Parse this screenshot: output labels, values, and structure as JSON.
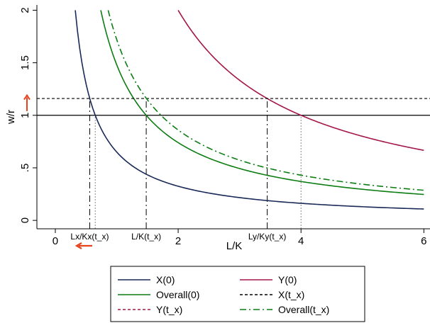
{
  "chart_data": {
    "type": "line",
    "title": "",
    "xlabel": "L/K",
    "ylabel": "w/r",
    "xlim": [
      -0.3,
      6.1
    ],
    "ylim": [
      -0.08,
      2.05
    ],
    "x_ticks": [
      {
        "value": 0,
        "label": "0"
      },
      {
        "value": 2,
        "label": "2"
      },
      {
        "value": 4,
        "label": "4"
      },
      {
        "value": 6,
        "label": "6"
      }
    ],
    "y_ticks": [
      {
        "value": 0,
        "label": "0"
      },
      {
        "value": 0.5,
        "label": ".5"
      },
      {
        "value": 1,
        "label": "1"
      },
      {
        "value": 1.5,
        "label": "1.5"
      },
      {
        "value": 2,
        "label": "2"
      }
    ],
    "grid": false,
    "legend_position": "bottom",
    "series": [
      {
        "name": "X(0)",
        "color": "#1a2a57",
        "dash": "solid",
        "formula": "k/x",
        "k": 0.65,
        "x_from": 0.325,
        "x_to": 6
      },
      {
        "name": "Y(0)",
        "color": "#a3164a",
        "dash": "solid",
        "formula": "k/x",
        "k": 4.0,
        "x_from": 2.0,
        "x_to": 6
      },
      {
        "name": "Overall(0)",
        "color": "#0d7d13",
        "dash": "solid",
        "formula": "k/x",
        "k": 1.48,
        "x_from": 0.74,
        "x_to": 6
      },
      {
        "name": "X(t_x)",
        "color": "#000000",
        "dash": "short-dash",
        "formula": "constant",
        "k": 1.16,
        "x_from": -0.3,
        "x_to": 6.1
      },
      {
        "name": "Y(t_x)",
        "color": "#a3164a",
        "dash": "short-dash",
        "formula": "none"
      },
      {
        "name": "Overall(t_x)",
        "color": "#0d7d13",
        "dash": "dash-dot",
        "formula": "k/x",
        "k": 1.72,
        "x_from": 0.86,
        "x_to": 6
      }
    ],
    "reference_lines": [
      {
        "orientation": "horizontal",
        "value": 1.0,
        "style": "solid",
        "color": "#000000"
      },
      {
        "orientation": "vertical",
        "value": 0.56,
        "style": "dash-dot",
        "y_to": 1.16
      },
      {
        "orientation": "vertical",
        "value": 0.65,
        "style": "dotted",
        "y_to": 1.0
      },
      {
        "orientation": "vertical",
        "value": 1.48,
        "style": "dash-dot",
        "y_to": 1.16
      },
      {
        "orientation": "vertical",
        "value": 3.45,
        "style": "dash-dot",
        "y_to": 1.16
      },
      {
        "orientation": "vertical",
        "value": 4.0,
        "style": "dotted",
        "y_to": 1.0
      }
    ],
    "annotations": [
      {
        "text": "Lx/Kx(t_x)",
        "x": 0.56
      },
      {
        "text": "L/K(t_x)",
        "x": 1.48
      },
      {
        "text": "Ly/Ky(t_x)",
        "x": 3.45
      }
    ],
    "arrows": [
      {
        "direction": "up",
        "color": "#e8411e",
        "note": "w/r rises"
      },
      {
        "direction": "left",
        "color": "#e8411e",
        "note": "Lx/Kx falls"
      }
    ]
  }
}
